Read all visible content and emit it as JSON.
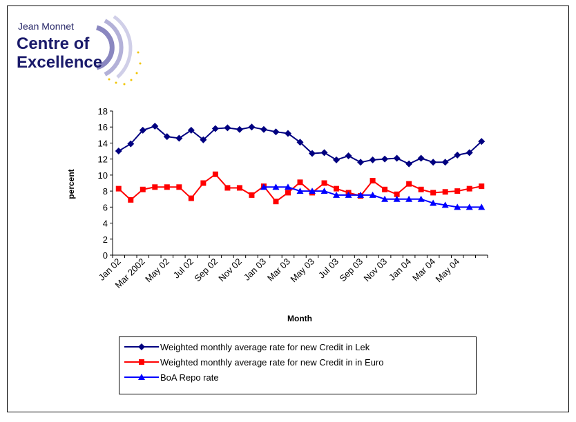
{
  "logo": {
    "line1": "Jean Monnet",
    "line2": "Centre of",
    "line3": "Excellence"
  },
  "chart_data": {
    "type": "line",
    "x_label": "Month",
    "y_label": "percent",
    "categories": [
      "Jan 02",
      null,
      "Mar 2002",
      null,
      "May 02",
      null,
      "Jul 02",
      null,
      "Sep 02",
      null,
      "Nov 02",
      null,
      "Jan 03",
      null,
      "Mar 03",
      null,
      "May 03",
      null,
      "Jul 03",
      null,
      "Sep 03",
      null,
      "Nov 03",
      null,
      "Jan 04",
      null,
      "Mar 04",
      null,
      "May 04",
      null,
      null
    ],
    "ylim": [
      0,
      18
    ],
    "yticks": [
      0,
      2,
      4,
      6,
      8,
      10,
      12,
      14,
      16,
      18
    ],
    "series": [
      {
        "name": "Weighted monthly average rate for new Credit in Lek",
        "color": "#000080",
        "marker": "diamond",
        "values": [
          13,
          13.9,
          15.6,
          16.1,
          14.8,
          14.6,
          15.6,
          14.4,
          15.8,
          15.9,
          15.7,
          16.0,
          15.7,
          15.4,
          15.2,
          14.1,
          12.7,
          12.8,
          11.9,
          12.4,
          11.6,
          11.9,
          12.0,
          12.1,
          11.4,
          12.1,
          11.6,
          11.6,
          12.5,
          12.8,
          14.2
        ]
      },
      {
        "name": "Weighted monthly average rate for new Credit in in Euro",
        "color": "#ff0000",
        "marker": "square",
        "values": [
          8.3,
          6.9,
          8.2,
          8.5,
          8.5,
          8.5,
          7.1,
          9.0,
          10.1,
          8.4,
          8.4,
          7.5,
          8.6,
          6.7,
          7.8,
          9.1,
          7.8,
          9.0,
          8.3,
          7.8,
          7.4,
          9.3,
          8.2,
          7.6,
          8.9,
          8.2,
          7.8,
          7.9,
          8.0,
          8.3,
          8.6
        ]
      },
      {
        "name": "BoA Repo rate",
        "color": "#0000ff",
        "marker": "triangle",
        "values": [
          null,
          null,
          null,
          null,
          null,
          null,
          null,
          null,
          null,
          null,
          null,
          null,
          8.5,
          8.5,
          8.5,
          8.0,
          8.0,
          8.0,
          7.5,
          7.5,
          7.5,
          7.5,
          7.0,
          7.0,
          7.0,
          7.0,
          6.5,
          6.25,
          6.0,
          6.0,
          6.0
        ]
      }
    ]
  }
}
